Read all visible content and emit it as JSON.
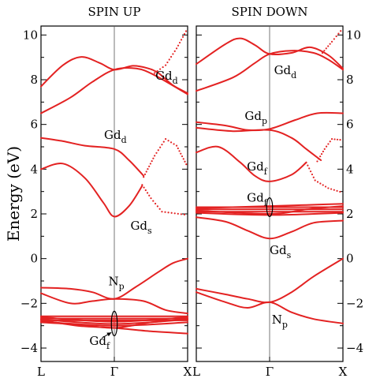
{
  "chart_data": {
    "type": "line",
    "ylabel": "Energy (eV)",
    "ylim": [
      -4.6,
      10.4
    ],
    "yticks": [
      10,
      8,
      6,
      4,
      2,
      0,
      -2,
      -4
    ],
    "xticks": [
      "L",
      "Γ",
      "X"
    ],
    "line_color": "#e32222",
    "panels": [
      {
        "title": "SPIN UP",
        "labels": [
          {
            "main": "Gd",
            "sub": "d",
            "x": 0.56,
            "y": 8.0
          },
          {
            "main": "Gd",
            "sub": "d",
            "x": -0.14,
            "y": 5.35
          },
          {
            "main": "Gd",
            "sub": "s",
            "x": 0.22,
            "y": 1.3
          },
          {
            "main": "N",
            "sub": "p",
            "x": -0.08,
            "y": -1.2
          },
          {
            "main": "Gd",
            "sub": "f",
            "x": -0.34,
            "y": -3.85
          }
        ],
        "series": [
          {
            "values": [
              [
                -1,
                7.7
              ],
              [
                -0.7,
                8.65
              ],
              [
                -0.45,
                9.02
              ],
              [
                -0.2,
                8.75
              ],
              [
                0,
                8.45
              ],
              [
                0.25,
                8.62
              ],
              [
                0.45,
                8.52
              ],
              [
                0.6,
                8.3
              ],
              [
                0.8,
                7.75
              ],
              [
                1,
                7.4
              ]
            ]
          },
          {
            "values": [
              [
                -1,
                6.5
              ],
              [
                -0.6,
                7.2
              ],
              [
                -0.3,
                7.9
              ],
              [
                0,
                8.45
              ],
              [
                0.3,
                8.5
              ],
              [
                0.55,
                8.2
              ],
              [
                1,
                7.35
              ]
            ]
          },
          {
            "style": "dotted",
            "values": [
              [
                0.55,
                8.3
              ],
              [
                0.7,
                8.65
              ],
              [
                0.85,
                9.4
              ],
              [
                1,
                10.3
              ]
            ]
          },
          {
            "values": [
              [
                -1,
                5.4
              ],
              [
                -0.7,
                5.25
              ],
              [
                -0.4,
                5.05
              ],
              [
                0,
                4.9
              ],
              [
                0.2,
                4.4
              ],
              [
                0.4,
                3.7
              ]
            ]
          },
          {
            "style": "dotted",
            "values": [
              [
                0.4,
                3.65
              ],
              [
                0.55,
                4.6
              ],
              [
                0.7,
                5.35
              ],
              [
                0.85,
                5.05
              ],
              [
                1,
                4.1
              ]
            ]
          },
          {
            "values": [
              [
                -1,
                4.0
              ],
              [
                -0.7,
                4.25
              ],
              [
                -0.4,
                3.6
              ],
              [
                -0.15,
                2.5
              ],
              [
                0,
                1.88
              ],
              [
                0.2,
                2.35
              ],
              [
                0.38,
                3.25
              ]
            ]
          },
          {
            "style": "dotted",
            "values": [
              [
                0.38,
                3.3
              ],
              [
                0.5,
                2.7
              ],
              [
                0.65,
                2.1
              ],
              [
                1,
                1.95
              ]
            ]
          },
          {
            "values": [
              [
                -1,
                -1.3
              ],
              [
                -0.6,
                -1.35
              ],
              [
                -0.3,
                -1.5
              ],
              [
                0,
                -1.8
              ],
              [
                0.3,
                -1.25
              ],
              [
                0.6,
                -0.6
              ],
              [
                0.8,
                -0.2
              ],
              [
                1,
                0.0
              ]
            ]
          },
          {
            "values": [
              [
                -1,
                -1.55
              ],
              [
                -0.6,
                -2.0
              ],
              [
                -0.3,
                -1.9
              ],
              [
                0,
                -1.8
              ],
              [
                0.4,
                -1.9
              ],
              [
                0.7,
                -2.3
              ],
              [
                1,
                -2.45
              ]
            ]
          },
          {
            "values": [
              [
                -1,
                -2.58
              ],
              [
                1,
                -2.58
              ]
            ]
          },
          {
            "values": [
              [
                -1,
                -2.68
              ],
              [
                1,
                -2.68
              ]
            ]
          },
          {
            "values": [
              [
                -1,
                -2.76
              ],
              [
                1,
                -2.76
              ]
            ]
          },
          {
            "values": [
              [
                -1,
                -2.62
              ],
              [
                0,
                -2.82
              ],
              [
                1,
                -2.62
              ]
            ]
          },
          {
            "values": [
              [
                -1,
                -2.72
              ],
              [
                0,
                -2.92
              ],
              [
                1,
                -2.72
              ]
            ]
          },
          {
            "values": [
              [
                -1,
                -2.82
              ],
              [
                0,
                -3.0
              ],
              [
                1,
                -2.85
              ]
            ]
          },
          {
            "values": [
              [
                -1,
                -2.75
              ],
              [
                -0.5,
                -3.0
              ],
              [
                0,
                -3.1
              ],
              [
                0.5,
                -3.25
              ],
              [
                1,
                -3.35
              ]
            ]
          },
          {
            "values": [
              [
                -1,
                -2.85
              ],
              [
                -0.5,
                -2.95
              ],
              [
                0,
                -3.1
              ],
              [
                0.5,
                -2.85
              ],
              [
                1,
                -2.7
              ]
            ]
          }
        ],
        "ellipse": {
          "cx": 0.0,
          "cy": -2.9,
          "rx": 0.04,
          "ry": 0.55
        },
        "arrow": {
          "from": [
            -0.17,
            -3.55
          ],
          "to": [
            -0.04,
            -3.3
          ]
        }
      },
      {
        "title": "SPIN DOWN",
        "labels": [
          {
            "main": "Gd",
            "sub": "d",
            "x": 0.06,
            "y": 8.25
          },
          {
            "main": "Gd",
            "sub": "p",
            "x": -0.34,
            "y": 6.2
          },
          {
            "main": "Gd",
            "sub": "f",
            "x": -0.31,
            "y": 3.95
          },
          {
            "main": "Gd",
            "sub": "f",
            "x": -0.31,
            "y": 2.55
          },
          {
            "main": "Gd",
            "sub": "s",
            "x": 0.0,
            "y": 0.2
          },
          {
            "main": "N",
            "sub": "p",
            "x": 0.03,
            "y": -2.9
          }
        ],
        "series": [
          {
            "values": [
              [
                -1,
                8.7
              ],
              [
                -0.6,
                9.6
              ],
              [
                -0.4,
                9.85
              ],
              [
                -0.2,
                9.55
              ],
              [
                0,
                9.15
              ],
              [
                0.3,
                9.2
              ],
              [
                0.55,
                9.45
              ],
              [
                0.8,
                9.1
              ],
              [
                1,
                8.5
              ]
            ]
          },
          {
            "values": [
              [
                -1,
                7.5
              ],
              [
                -0.5,
                8.1
              ],
              [
                -0.2,
                8.75
              ],
              [
                0,
                9.15
              ],
              [
                0.3,
                9.3
              ],
              [
                0.6,
                9.2
              ],
              [
                0.8,
                8.9
              ],
              [
                1,
                8.45
              ]
            ]
          },
          {
            "style": "dotted",
            "values": [
              [
                0.72,
                9.2
              ],
              [
                0.85,
                9.7
              ],
              [
                1,
                10.3
              ]
            ]
          },
          {
            "values": [
              [
                -1,
                6.1
              ],
              [
                -0.6,
                5.95
              ],
              [
                -0.3,
                5.75
              ],
              [
                0,
                5.8
              ],
              [
                0.35,
                6.2
              ],
              [
                0.65,
                6.5
              ],
              [
                1,
                6.5
              ]
            ]
          },
          {
            "values": [
              [
                -1,
                5.85
              ],
              [
                -0.5,
                5.7
              ],
              [
                0,
                5.75
              ],
              [
                0.3,
                5.4
              ],
              [
                0.5,
                4.9
              ],
              [
                0.7,
                4.4
              ]
            ]
          },
          {
            "style": "dotted",
            "values": [
              [
                0.65,
                4.35
              ],
              [
                0.75,
                4.9
              ],
              [
                0.85,
                5.35
              ],
              [
                1,
                5.3
              ]
            ]
          },
          {
            "values": [
              [
                -1,
                4.75
              ],
              [
                -0.7,
                5.0
              ],
              [
                -0.4,
                4.3
              ],
              [
                -0.2,
                3.7
              ],
              [
                0,
                3.45
              ],
              [
                0.3,
                3.75
              ],
              [
                0.5,
                4.3
              ]
            ]
          },
          {
            "style": "dotted",
            "values": [
              [
                0.5,
                4.3
              ],
              [
                0.62,
                3.5
              ],
              [
                0.8,
                3.15
              ],
              [
                1,
                2.95
              ]
            ]
          },
          {
            "values": [
              [
                -1,
                2.3
              ],
              [
                1,
                2.3
              ]
            ]
          },
          {
            "values": [
              [
                -1,
                2.2
              ],
              [
                1,
                2.2
              ]
            ]
          },
          {
            "values": [
              [
                -1,
                2.1
              ],
              [
                1,
                2.1
              ]
            ]
          },
          {
            "values": [
              [
                -1,
                2.15
              ],
              [
                0,
                2.0
              ],
              [
                0.5,
                2.2
              ],
              [
                1,
                2.35
              ]
            ]
          },
          {
            "values": [
              [
                -1,
                2.25
              ],
              [
                0,
                2.35
              ],
              [
                0.5,
                2.4
              ],
              [
                1,
                2.45
              ]
            ]
          },
          {
            "values": [
              [
                -1,
                2.05
              ],
              [
                0,
                1.95
              ],
              [
                1,
                2.05
              ]
            ]
          },
          {
            "values": [
              [
                -1,
                1.85
              ],
              [
                -0.6,
                1.65
              ],
              [
                -0.3,
                1.25
              ],
              [
                0,
                0.9
              ],
              [
                0.3,
                1.2
              ],
              [
                0.6,
                1.6
              ],
              [
                1,
                1.7
              ]
            ]
          },
          {
            "values": [
              [
                -1,
                -1.35
              ],
              [
                -0.6,
                -1.6
              ],
              [
                -0.3,
                -1.8
              ],
              [
                0,
                -1.95
              ],
              [
                0.3,
                -1.5
              ],
              [
                0.6,
                -0.8
              ],
              [
                1,
                0.0
              ]
            ]
          },
          {
            "values": [
              [
                -1,
                -1.5
              ],
              [
                -0.6,
                -1.95
              ],
              [
                -0.3,
                -2.2
              ],
              [
                0,
                -1.95
              ],
              [
                0.3,
                -2.4
              ],
              [
                0.6,
                -2.7
              ],
              [
                1,
                -2.9
              ]
            ]
          }
        ],
        "ellipse": {
          "cx": 0.0,
          "cy": 2.3,
          "rx": 0.04,
          "ry": 0.42
        }
      }
    ]
  }
}
